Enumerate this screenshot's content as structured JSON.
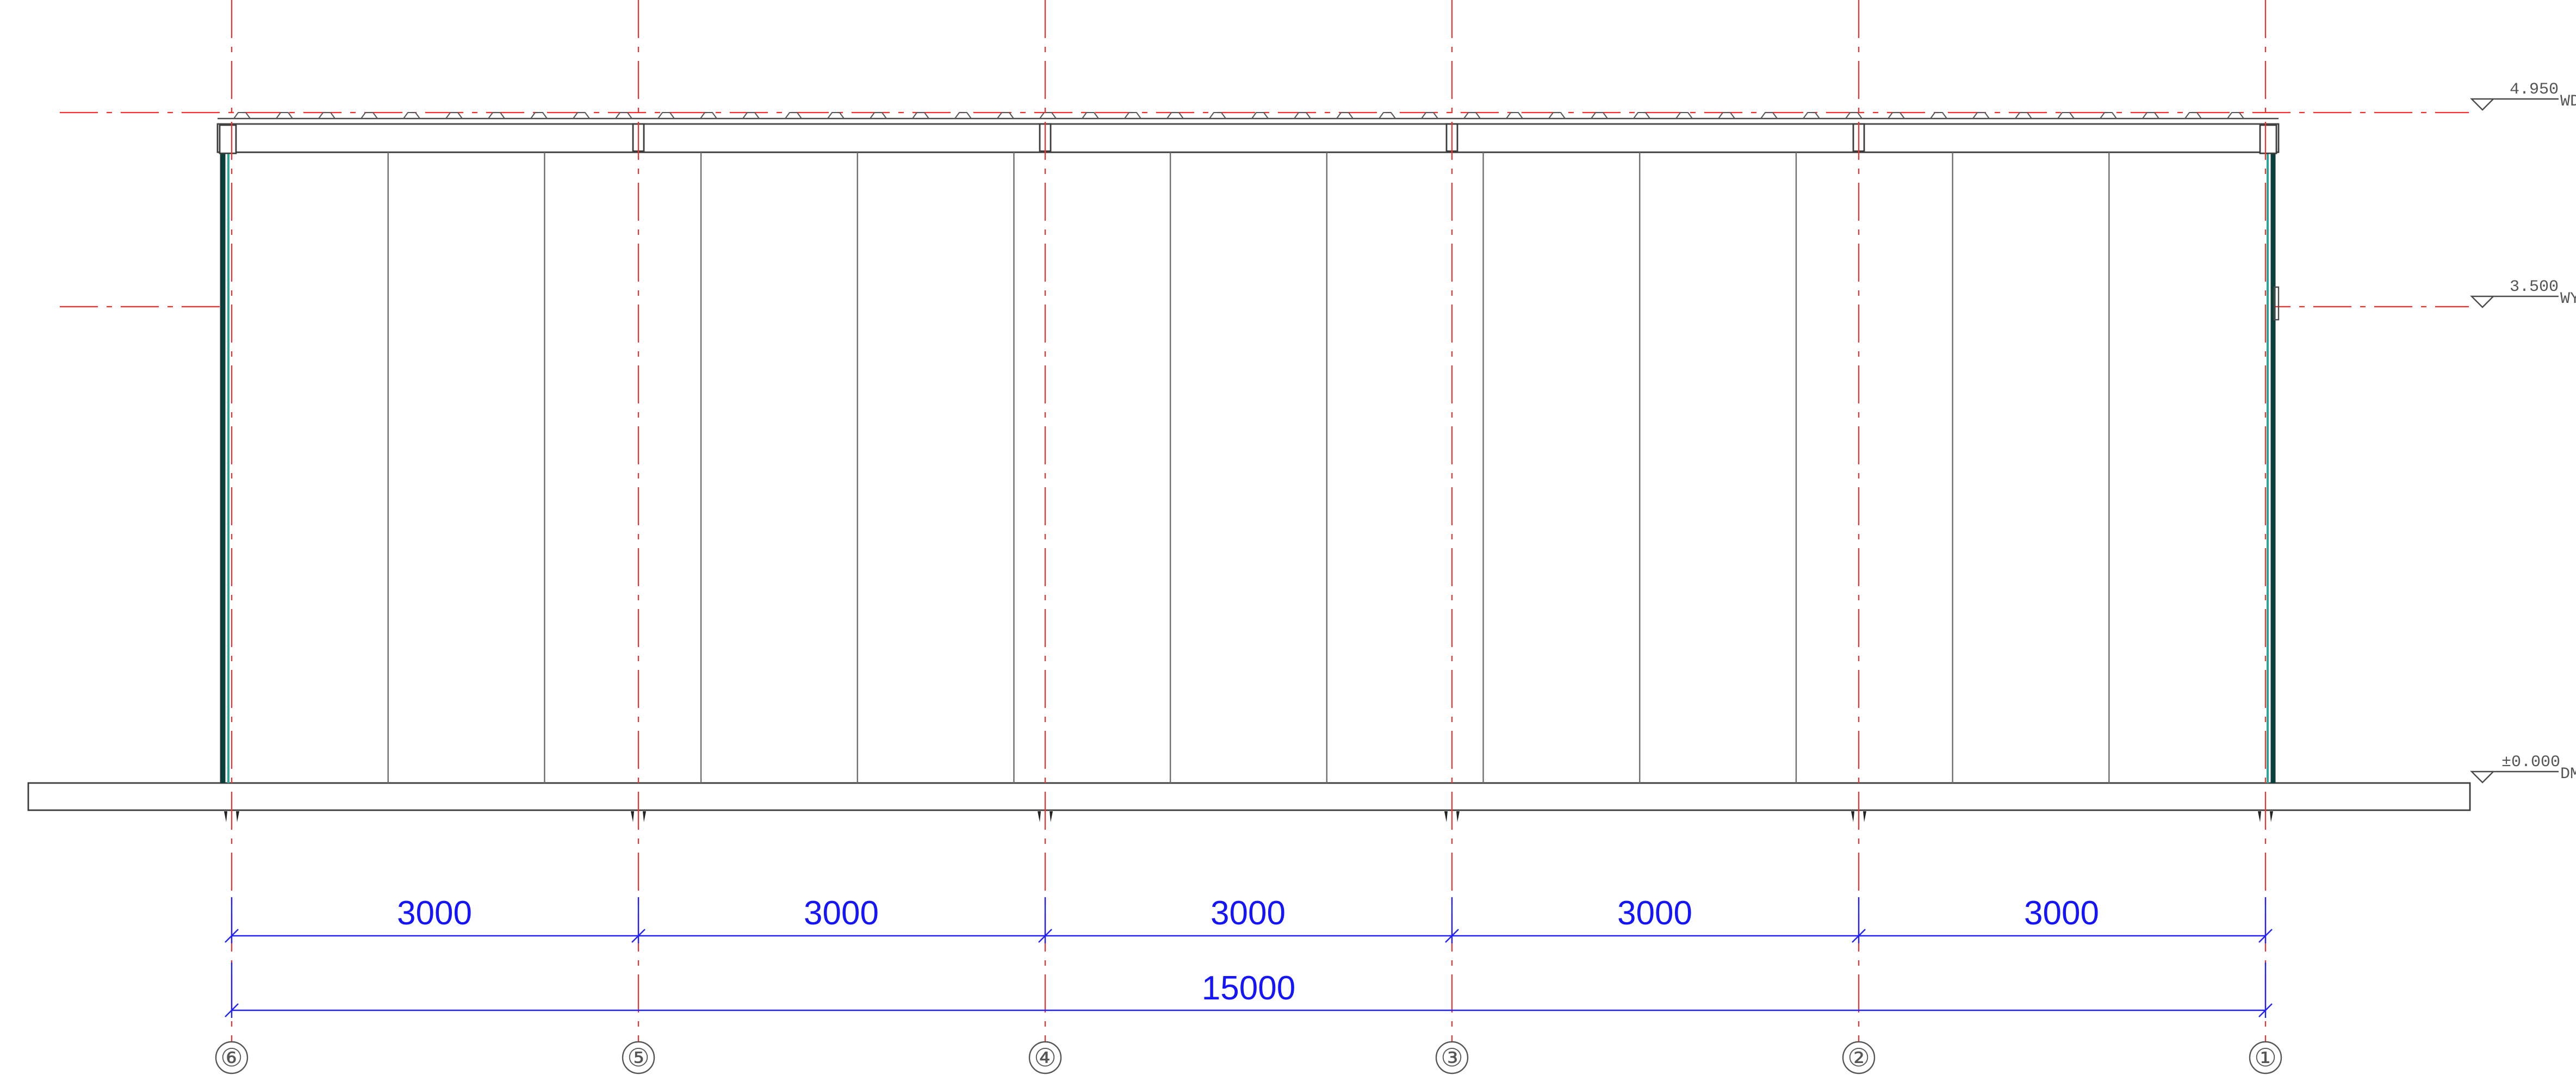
{
  "drawing": {
    "axes": [
      {
        "label": "⑥"
      },
      {
        "label": "⑤"
      },
      {
        "label": "④"
      },
      {
        "label": "③"
      },
      {
        "label": "②"
      },
      {
        "label": "①"
      }
    ],
    "spans": [
      {
        "label": "3000"
      },
      {
        "label": "3000"
      },
      {
        "label": "3000"
      },
      {
        "label": "3000"
      },
      {
        "label": "3000"
      }
    ],
    "overall": {
      "label": "15000"
    },
    "levels": [
      {
        "value": "4.950",
        "tag": "WD"
      },
      {
        "value": "3.500",
        "tag": "WY"
      },
      {
        "value": "±0.000",
        "tag": "DM"
      }
    ],
    "colors": {
      "axis": "#ff2a2a",
      "dimension": "#1414ff",
      "wall_edge": "#0b3d3a",
      "outline": "#3b3b3b"
    }
  }
}
